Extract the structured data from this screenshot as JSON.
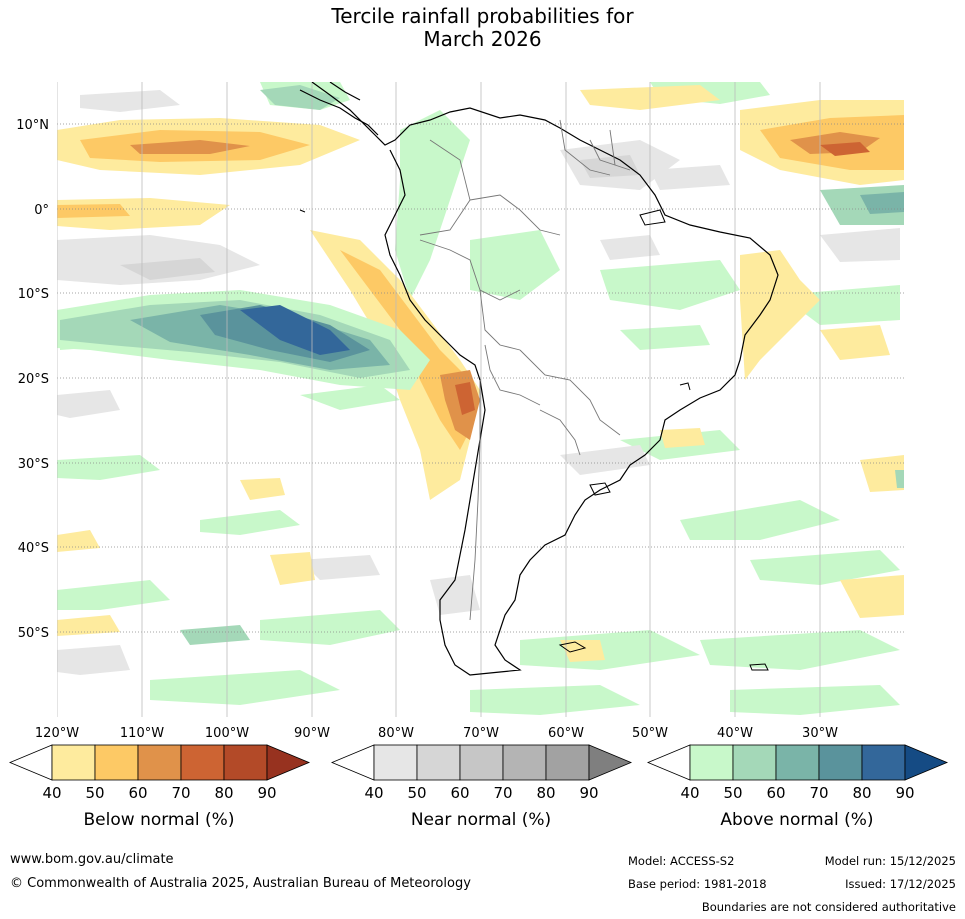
{
  "title": {
    "line1": "Tercile rainfall probabilities for",
    "line2": "March 2026"
  },
  "map": {
    "lat_labels": [
      "10°N",
      "0°",
      "10°S",
      "20°S",
      "30°S",
      "40°S",
      "50°S"
    ],
    "lon_labels": [
      "120°W",
      "110°W",
      "100°W",
      "90°W",
      "80°W",
      "70°W",
      "60°W",
      "50°W",
      "40°W",
      "30°W"
    ]
  },
  "legends": [
    {
      "title": "Below normal (%)",
      "ticks": [
        "40",
        "50",
        "60",
        "70",
        "80",
        "90"
      ],
      "colors": [
        "#ffffff",
        "#feeb9e",
        "#fdc965",
        "#e0924a",
        "#cd6433",
        "#b34a28",
        "#97321f"
      ]
    },
    {
      "title": "Near normal (%)",
      "ticks": [
        "40",
        "50",
        "60",
        "70",
        "80",
        "90"
      ],
      "colors": [
        "#ffffff",
        "#e6e6e6",
        "#d6d6d6",
        "#c6c6c6",
        "#b4b4b4",
        "#a2a2a2",
        "#7f7f7f"
      ]
    },
    {
      "title": "Above normal (%)",
      "ticks": [
        "40",
        "50",
        "60",
        "70",
        "80",
        "90"
      ],
      "colors": [
        "#ffffff",
        "#c8f8ca",
        "#a4d8b8",
        "#7ab4a8",
        "#5a939c",
        "#33679a",
        "#154b84"
      ]
    }
  ],
  "footer": {
    "url": "www.bom.gov.au/climate",
    "copyright": "© Commonwealth of Australia 2025, Australian Bureau of Meteorology",
    "model": "Model: ACCESS-S2",
    "base_period": "Base period: 1981-2018",
    "model_run": "Model run: 15/12/2025",
    "issued": "Issued: 17/12/2025",
    "disclaimer": "Boundaries are not considered authoritative"
  }
}
